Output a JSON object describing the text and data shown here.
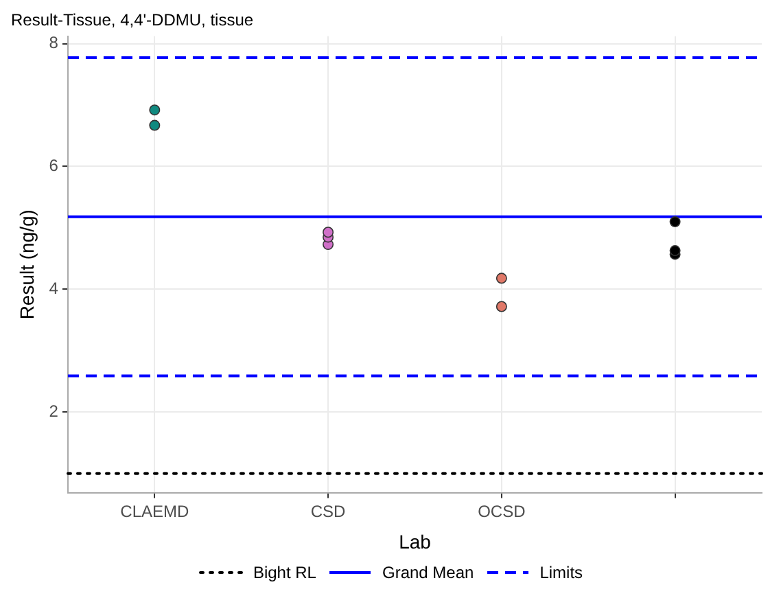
{
  "chart_data": {
    "type": "scatter",
    "title": "Result-Tissue, 4,4'-DDMU, tissue",
    "xlabel": "Lab",
    "ylabel": "Result (ng/g)",
    "categories": [
      "CLAEMD",
      "CSD",
      "OCSD",
      null
    ],
    "series": [
      {
        "values": [
          6.92,
          4.93,
          4.18,
          5.1
        ],
        "colors": [
          "#108a80",
          "#d070c8",
          "#e07868",
          "#000000"
        ]
      },
      {
        "values": [
          6.67,
          4.85,
          3.72,
          4.63
        ],
        "colors": [
          "#108a80",
          "#d070c8",
          "#e07868",
          "#000000"
        ]
      },
      {
        "values": [
          null,
          4.73,
          null,
          4.57
        ],
        "colors": [
          "#108a80",
          "#d070c8",
          "#e07868",
          "#000000"
        ]
      }
    ],
    "ylim": [
      0.69,
      8.12
    ],
    "yticks": [
      2,
      4,
      6,
      8
    ],
    "grid": true,
    "marker": "circle",
    "legend": "bottom",
    "ref_lines": [
      {
        "axis": "y",
        "value": 1.0,
        "label": "Bight RL",
        "color": "#000000",
        "line_style": "dotted"
      },
      {
        "axis": "y",
        "value": 5.18,
        "label": "Grand Mean",
        "color": "#0000ff",
        "line_style": "solid"
      },
      {
        "axis": "y",
        "value": 7.77,
        "label": "Limits",
        "color": "#0000ff",
        "line_style": "dashed"
      },
      {
        "axis": "y",
        "value": 2.59,
        "color": "#0000ff",
        "line_style": "dashed"
      }
    ]
  }
}
